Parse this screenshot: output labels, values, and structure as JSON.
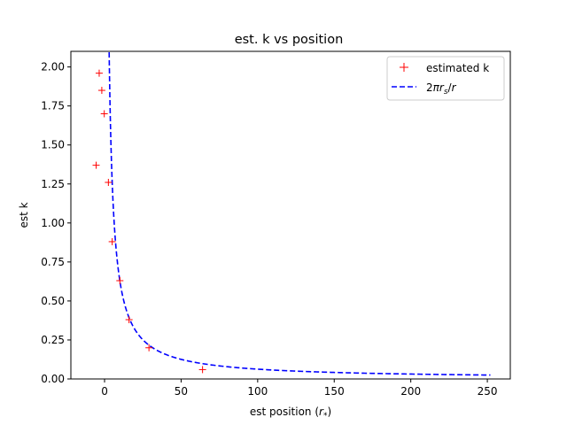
{
  "chart_data": {
    "type": "scatter",
    "title": "est. k vs position",
    "xlabel": "est position (r*)",
    "ylabel": "est k",
    "xlim": [
      -22,
      265
    ],
    "ylim": [
      0,
      2.1
    ],
    "xticks": [
      0,
      50,
      100,
      150,
      200,
      250
    ],
    "yticks": [
      0.0,
      0.25,
      0.5,
      0.75,
      1.0,
      1.25,
      1.5,
      1.75,
      2.0
    ],
    "xtick_labels": [
      "0",
      "50",
      "100",
      "150",
      "200",
      "250"
    ],
    "ytick_labels": [
      "0.00",
      "0.25",
      "0.50",
      "0.75",
      "1.00",
      "1.25",
      "1.50",
      "1.75",
      "2.00"
    ],
    "grid": false,
    "legend_position": "top-right",
    "series": [
      {
        "name": "estimated k",
        "marker": "+",
        "color": "#ff0000",
        "x": [
          -3.5,
          -1.8,
          -0.2,
          -5.5,
          2.5,
          5.0,
          10.0,
          16.0,
          29.0,
          64.0
        ],
        "y": [
          1.96,
          1.85,
          1.7,
          1.37,
          1.26,
          0.88,
          0.63,
          0.38,
          0.2,
          0.06
        ]
      },
      {
        "name": "2πr_s/r",
        "line_style": "dashed",
        "color": "#0000ff",
        "function": "2*pi*rs/r",
        "rs": 1.0,
        "x_range": [
          3,
          252
        ]
      }
    ]
  }
}
